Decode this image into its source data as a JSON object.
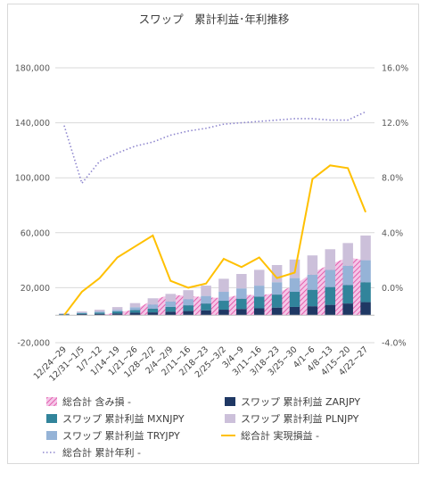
{
  "chart_data": {
    "type": "bar",
    "title": "スワップ　累計利益･年利推移",
    "categories": [
      "12/24~29",
      "12/31~1/5",
      "1/7~12",
      "1/14~19",
      "1/21~26",
      "1/28~2/2",
      "2/4~2/9",
      "2/11~16",
      "2/18~23",
      "2/25~3/2",
      "3/4~9",
      "3/11~16",
      "3/18~23",
      "3/25~30",
      "4/1~6",
      "4/8~13",
      "4/15~20",
      "4/22~27"
    ],
    "y_left_ticks": [
      "180,000",
      "140,000",
      "100,000",
      "60,000",
      "20,000",
      "-20,000"
    ],
    "y_right_ticks": [
      "16.0%",
      "12.0%",
      "8.0%",
      "4.0%",
      "0.0%",
      "-4.0%"
    ],
    "ylim_left": [
      -20000,
      180000
    ],
    "ylim_right": [
      -4.0,
      16.0
    ],
    "series": [
      {
        "name": "総合計 含み損 -",
        "type": "area",
        "axis": "left",
        "color": "#e36fc4",
        "values": [
          0,
          0,
          0,
          2000,
          4000,
          11000,
          15000,
          14000,
          13000,
          12500,
          15000,
          14500,
          16000,
          22000,
          31000,
          37000,
          42000,
          40000
        ]
      },
      {
        "name": "スワップ 累計利益 ZARJPY",
        "type": "bar",
        "axis": "left",
        "color": "#1f3864",
        "values": [
          500,
          800,
          1000,
          1200,
          1800,
          2000,
          2500,
          3000,
          3500,
          4000,
          4500,
          5000,
          5500,
          6000,
          6500,
          7500,
          8500,
          9500
        ]
      },
      {
        "name": "スワップ 累計利益 MXNJPY",
        "type": "bar",
        "axis": "left",
        "color": "#31849b",
        "values": [
          300,
          600,
          900,
          1500,
          2000,
          2800,
          3500,
          4200,
          5000,
          6500,
          7500,
          8500,
          9500,
          11000,
          12000,
          13000,
          13500,
          14500
        ]
      },
      {
        "name": "スワップ 累計利益 TRYJPY",
        "type": "bar",
        "axis": "left",
        "color": "#95b3d7",
        "values": [
          200,
          500,
          800,
          1200,
          2000,
          3000,
          4000,
          4500,
          5500,
          6500,
          7500,
          8000,
          9000,
          10000,
          11000,
          12500,
          14000,
          16000
        ]
      },
      {
        "name": "スワップ 累計利益 PLNJPY",
        "type": "bar",
        "axis": "left",
        "color": "#ccc0da",
        "values": [
          400,
          800,
          1300,
          2000,
          3000,
          4500,
          5500,
          6500,
          7500,
          9500,
          10500,
          11500,
          12500,
          13500,
          14000,
          15000,
          16500,
          18000
        ]
      },
      {
        "name": "総合計 実現損益 -",
        "type": "line",
        "axis": "left",
        "color": "#ffc000",
        "values": [
          0,
          17000,
          27000,
          42000,
          50000,
          58000,
          25000,
          20000,
          23000,
          41000,
          35000,
          42000,
          27000,
          31000,
          99000,
          109000,
          107000,
          75000
        ]
      },
      {
        "name": "総合計 累計年利 -",
        "type": "line",
        "axis": "right",
        "color": "#8e86ce",
        "dotted": true,
        "values": [
          11.8,
          7.6,
          9.2,
          9.8,
          10.3,
          10.6,
          11.1,
          11.4,
          11.6,
          11.9,
          12.0,
          12.1,
          12.2,
          12.3,
          12.3,
          12.2,
          12.2,
          12.8
        ]
      }
    ],
    "legend_position": "bottom"
  }
}
